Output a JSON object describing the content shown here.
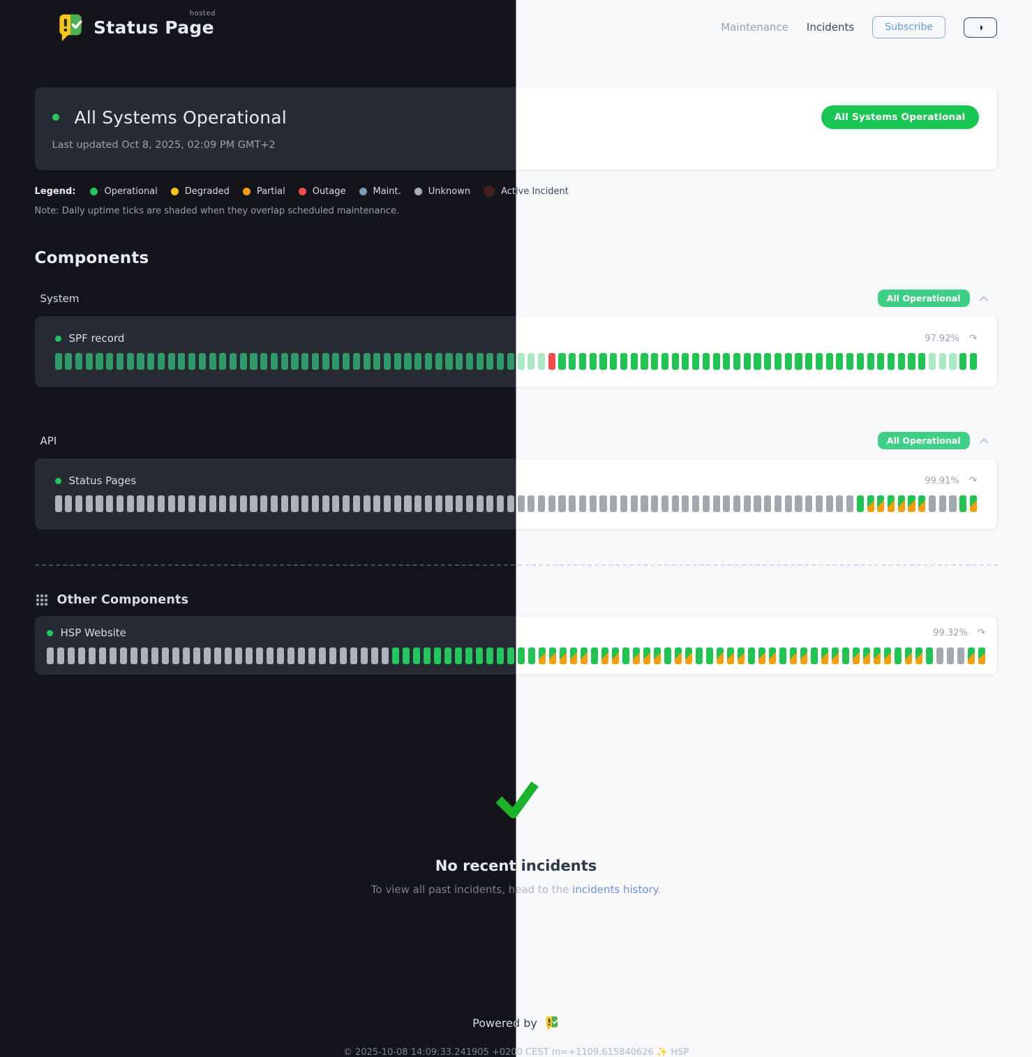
{
  "colors": {
    "accent": "#19c653",
    "badge": "#3fce85",
    "partial": "#f59e0b",
    "outage": "#ef4d4d",
    "link": "#6d92da",
    "subscribe": "#6b95e6",
    "check": "#1cb32b"
  },
  "header": {
    "brand_title": "Status Page",
    "brand_sup": "hosted",
    "nav_maintenance": "Maintenance",
    "nav_incidents": "Incidents",
    "subscribe_label": "Subscribe",
    "theme_toggle_icon": "◑"
  },
  "banner": {
    "title": "All Systems Operational",
    "last_updated": "Last updated Oct 8, 2025, 02:09 PM GMT+2",
    "badge": "All Systems Operational"
  },
  "legend": {
    "label": "Legend:",
    "items": [
      {
        "label": "Operational",
        "color": "#22c55e"
      },
      {
        "label": "Degraded",
        "color": "#f5c51c"
      },
      {
        "label": "Partial",
        "color": "#f59e0b"
      },
      {
        "label": "Outage",
        "color": "#ef4d4d"
      },
      {
        "label": "Maint.",
        "color": "#7e9cb8"
      },
      {
        "label": "Unknown",
        "color": "#a8aeb8"
      },
      {
        "label": "Active Incident",
        "color": "#42201f"
      }
    ],
    "note": "Note: Daily uptime ticks are shaded when they overlap scheduled maintenance."
  },
  "components": {
    "title": "Components",
    "groups": [
      {
        "name": "System",
        "badge": "All Operational",
        "rows": [
          {
            "name": "SPF record",
            "uptime": "97.92%",
            "refresh_icon": "↷",
            "ticks": "ooooooooooooooooooooooooooooooooooooooooooooommmxoooooooooooooooooooooooooooooooooooommmoo"
          }
        ]
      },
      {
        "name": "API",
        "badge": "All Operational",
        "rows": [
          {
            "name": "Status Pages",
            "uptime": "99.91%",
            "refresh_icon": "↷",
            "ticks": "uuuuuuuuuuuuuuuuuuuuuuuuuuuuuuuuuuuuuuuuuuuuuuuuuuuuuuuuuuuuuuuuuuuuuuuuuuuuuuodddddduuuod"
          }
        ]
      }
    ],
    "other": {
      "name": "Other Components",
      "rows": [
        {
          "name": "HSP Website",
          "uptime": "99.32%",
          "refresh_icon": "↷",
          "ticks": "uuuuuuuuuuuuuuuuuuuuuuuuuuuuuuuuuoooooooooooooodddddoddodddoddoodddoddoddoddoddddoddouuudd"
        }
      ]
    }
  },
  "incidents": {
    "title": "No recent incidents",
    "message_prefix": "To view all past incidents, head to the ",
    "link_label": "incidents history",
    "message_suffix": "."
  },
  "footer": {
    "powered_by": "Powered by",
    "copyright": "© 2025-10-08 14:09:33.241905 +0200 CEST m=+1109.615840626 ✨ HSP"
  }
}
